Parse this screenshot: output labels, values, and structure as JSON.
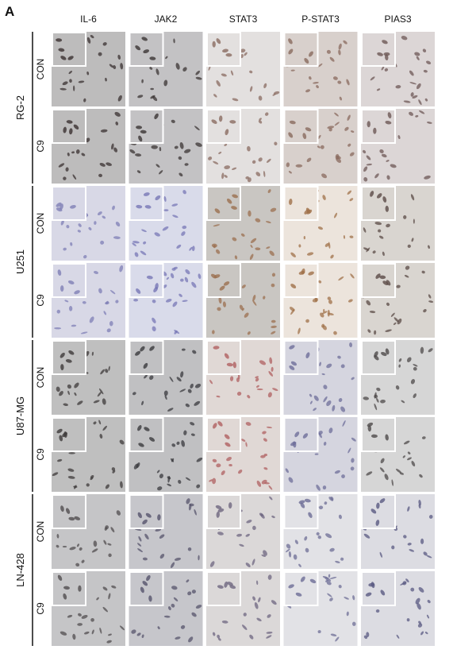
{
  "panel_label": "A",
  "columns": [
    "IL-6",
    "JAK2",
    "STAT3",
    "P-STAT3",
    "PIAS3"
  ],
  "groups": [
    {
      "name": "RG-2",
      "rows": [
        "CON",
        "C9"
      ]
    },
    {
      "name": "U251",
      "rows": [
        "CON",
        "C9"
      ]
    },
    {
      "name": "U87-MG",
      "rows": [
        "CON",
        "C9"
      ]
    },
    {
      "name": "LN-428",
      "rows": [
        "CON",
        "C9"
      ]
    }
  ]
}
